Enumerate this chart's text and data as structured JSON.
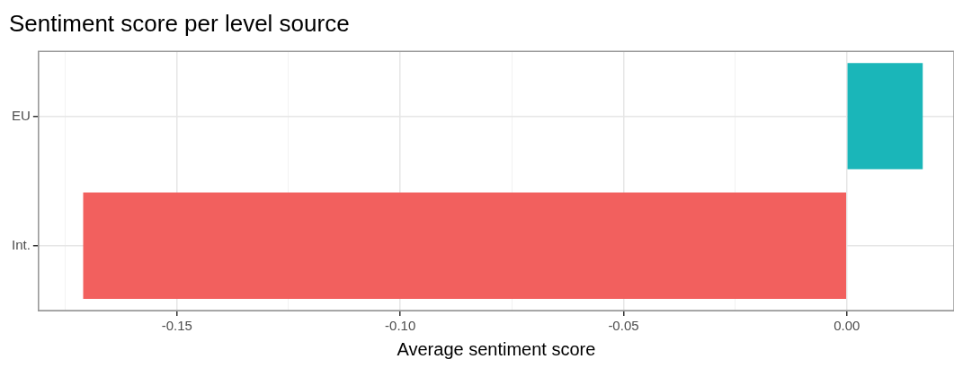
{
  "chart_data": {
    "type": "bar",
    "orientation": "horizontal",
    "title": "Sentiment score per level source",
    "xlabel": "Average sentiment score",
    "categories": [
      "EU",
      "Int."
    ],
    "values": [
      0.017,
      -0.171
    ],
    "colors": [
      "#1ab6b9",
      "#f2605e"
    ],
    "xlim": [
      -0.181,
      0.024
    ],
    "xticks": [
      {
        "value": -0.175,
        "label": null
      },
      {
        "value": -0.15,
        "label": "-0.15"
      },
      {
        "value": -0.125,
        "label": null
      },
      {
        "value": -0.1,
        "label": "-0.10"
      },
      {
        "value": -0.075,
        "label": null
      },
      {
        "value": -0.05,
        "label": "-0.05"
      },
      {
        "value": -0.025,
        "label": null
      },
      {
        "value": 0,
        "label": "0.00"
      }
    ],
    "grid": true,
    "legend": false
  }
}
